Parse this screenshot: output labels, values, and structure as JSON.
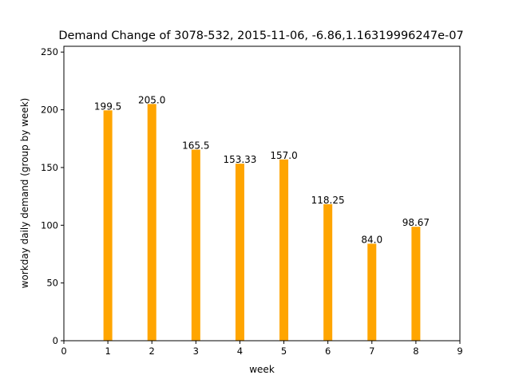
{
  "chart_data": {
    "type": "bar",
    "title": "Demand Change of 3078-532, 2015-11-06, -6.86,1.16319996247e-07",
    "xlabel": "week",
    "ylabel": "workday daily demand (group by week)",
    "x": [
      1,
      2,
      3,
      4,
      5,
      6,
      7,
      8
    ],
    "values": [
      199.5,
      205.0,
      165.5,
      153.33,
      157.0,
      118.25,
      84.0,
      98.67
    ],
    "data_labels": [
      "199.5",
      "205.0",
      "165.5",
      "153.33",
      "157.0",
      "118.25",
      "84.0",
      "98.67"
    ],
    "xlim": [
      0,
      9
    ],
    "ylim": [
      0,
      255
    ],
    "xticks": [
      0,
      1,
      2,
      3,
      4,
      5,
      6,
      7,
      8,
      9
    ],
    "yticks": [
      0,
      50,
      100,
      150,
      200,
      250
    ],
    "bar_width": 0.2,
    "bar_color": "#ffa500",
    "grid": false,
    "legend": "none"
  }
}
